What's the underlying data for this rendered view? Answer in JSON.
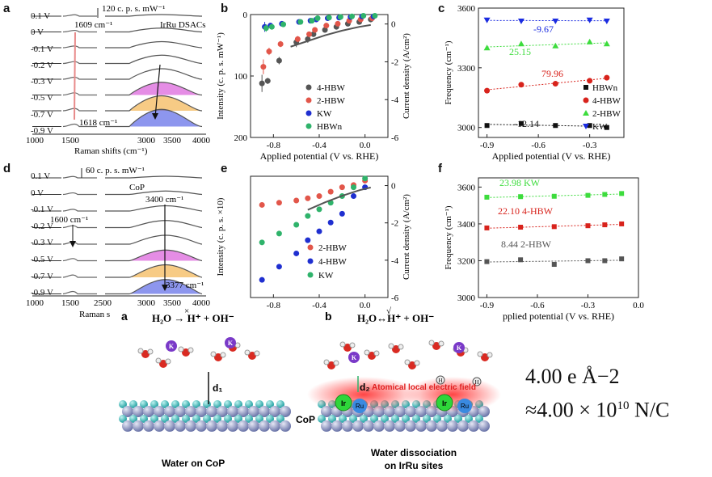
{
  "colors": {
    "black": "#555555",
    "red": "#e2564a",
    "blue": "#1f2fd0",
    "green": "#2fb36b",
    "lightgreen": "#3ddc3d",
    "navy": "#1a2be0",
    "bg": "#ffffff"
  },
  "panel_labels": {
    "a": "a",
    "b": "b",
    "c": "c",
    "d": "d",
    "e": "e",
    "f": "f",
    "a2": "a",
    "b2": "b"
  },
  "panel_a": {
    "scale": "120 c. p. s. mW⁻¹",
    "title": "IrRu DSACs",
    "peak_left": "1609 cm⁻¹",
    "peak_bottom": "1618 cm⁻¹",
    "potentials": [
      "0.1 V",
      "0 V",
      "-0.1 V",
      "-0.2 V",
      "-0.3 V",
      "-0.5 V",
      "-0.7 V",
      "-0.9 V"
    ],
    "xticks": [
      "1000",
      "1500",
      "3000",
      "3500",
      "4000"
    ],
    "xlabel": "Raman shifts (cm⁻¹)"
  },
  "panel_d": {
    "scale": "60 c. p. s. mW⁻¹",
    "title": "CoP",
    "peak_top": "3400 cm⁻¹",
    "peak_left": "1600 cm⁻¹",
    "peak_bottom": "3377 cm⁻¹",
    "potentials": [
      "0.1 V",
      "0 V",
      "-0.1 V",
      "-0.2 V",
      "-0.3 V",
      "-0.5 V",
      "-0.7 V",
      "-0.9 V"
    ],
    "xticks": [
      "1000",
      "1500",
      "2500",
      "3000",
      "3500",
      "4000"
    ],
    "xlabel": "Raman s"
  },
  "chart_data": [
    {
      "id": "b",
      "type": "scatter",
      "xlabel": "Applied potential (V vs. RHE)",
      "ylabel": "Intensity (c. p. s. mW⁻¹)",
      "y2label": "Current density (A/cm²)",
      "xlim": [
        -1.0,
        0.2
      ],
      "xticks": [
        "-0.8",
        "-0.4",
        "0.0"
      ],
      "ylim": [
        0,
        200
      ],
      "yticks": [
        "0",
        "100",
        "200"
      ],
      "y2lim": [
        -6,
        0.5
      ],
      "y2ticks": [
        "0",
        "-2",
        "-4",
        "-6"
      ],
      "x": [
        -0.9,
        -0.85,
        -0.75,
        -0.6,
        -0.5,
        -0.45,
        -0.35,
        -0.25,
        -0.15,
        -0.05,
        0.05
      ],
      "series": [
        {
          "name": "4-HBW",
          "color": "#555555",
          "values": [
            112,
            108,
            75,
            45,
            40,
            32,
            25,
            20,
            15,
            12,
            8
          ],
          "err": [
            14,
            5,
            6,
            8,
            6,
            4,
            3,
            3,
            3,
            2,
            2
          ]
        },
        {
          "name": "2-HBW",
          "color": "#e2564a",
          "values": [
            85,
            60,
            48,
            40,
            32,
            25,
            18,
            15,
            10,
            8,
            6
          ],
          "err": [
            12,
            6,
            5,
            5,
            4,
            4,
            3,
            3,
            2,
            2,
            2
          ]
        },
        {
          "name": "KW",
          "color": "#1f2fd0",
          "values": [
            20,
            18,
            15,
            12,
            10,
            8,
            6,
            5,
            4,
            3,
            3
          ],
          "err": [
            8,
            4,
            3,
            3,
            3,
            2,
            2,
            2,
            2,
            2,
            2
          ]
        },
        {
          "name": "HBWn",
          "color": "#2fb36b",
          "values": [
            22,
            20,
            16,
            12,
            10,
            6,
            5,
            4,
            3,
            2,
            2
          ],
          "err": [
            6,
            3,
            3,
            3,
            2,
            2,
            2,
            2,
            2,
            2,
            2
          ]
        }
      ],
      "curve": {
        "x": [
          -0.65,
          -0.5,
          -0.35,
          -0.2,
          -0.05,
          0.05
        ],
        "y2": [
          -1.2,
          -0.9,
          -0.6,
          -0.35,
          -0.15,
          -0.05
        ]
      }
    },
    {
      "id": "c",
      "type": "scatter",
      "xlabel": "Applied potential (V vs. RHE)",
      "ylabel": "Frequency (cm⁻¹)",
      "xlim": [
        -0.95,
        -0.1
      ],
      "xticks": [
        "-0.9",
        "-0.6",
        "-0.3"
      ],
      "ylim": [
        2950,
        3600
      ],
      "yticks": [
        "3000",
        "3300",
        "3600"
      ],
      "x": [
        -0.9,
        -0.7,
        -0.5,
        -0.3,
        -0.2
      ],
      "series": [
        {
          "name": "KW",
          "color": "#1a2be0",
          "marker": "tri-down",
          "values": [
            3540,
            3535,
            3535,
            3540,
            3535
          ],
          "slope": "-9.67"
        },
        {
          "name": "2-HBW",
          "color": "#3ddc3d",
          "marker": "tri-up",
          "values": [
            3400,
            3420,
            3410,
            3430,
            3420
          ],
          "slope": "25.15"
        },
        {
          "name": "4-HBW",
          "color": "#d8231c",
          "marker": "circle",
          "values": [
            3185,
            3215,
            3220,
            3235,
            3250
          ],
          "slope": "79.96"
        },
        {
          "name": "HBWn",
          "color": "#111111",
          "marker": "square",
          "values": [
            3010,
            3020,
            3010,
            3010,
            3000
          ],
          "slope": "-12.14"
        }
      ]
    },
    {
      "id": "e",
      "type": "scatter",
      "xlabel": "",
      "ylabel": "Intensity (c. p. s. ×10)",
      "y2label": "Current density (A/cm²)",
      "xlim": [
        -1.0,
        0.2
      ],
      "xticks": [
        "-0.8",
        "-0.4",
        "0.0"
      ],
      "ylim": [
        0,
        5.5
      ],
      "y2lim": [
        -6,
        0.5
      ],
      "y2ticks": [
        "0",
        "-2",
        "-4",
        "-6"
      ],
      "x": [
        -0.9,
        -0.75,
        -0.6,
        -0.5,
        -0.4,
        -0.3,
        -0.2,
        -0.1,
        0.0
      ],
      "series": [
        {
          "name": "2-HBW",
          "color": "#e2564a",
          "values": [
            4.2,
            4.3,
            4.4,
            4.5,
            4.6,
            4.8,
            5.0,
            5.1,
            5.3
          ]
        },
        {
          "name": "4-HBW",
          "color": "#1f2fd0",
          "values": [
            0.8,
            1.4,
            2.0,
            2.6,
            3.0,
            3.4,
            3.8,
            4.6,
            5.0
          ]
        },
        {
          "name": "KW",
          "color": "#2fb36b",
          "values": [
            2.5,
            2.9,
            3.3,
            3.7,
            4.0,
            4.3,
            4.6,
            5.0,
            5.4
          ]
        }
      ],
      "curve": {
        "x": [
          -0.5,
          -0.35,
          -0.2,
          -0.05,
          0.05
        ],
        "y2": [
          -1.3,
          -0.9,
          -0.55,
          -0.25,
          -0.1
        ]
      }
    },
    {
      "id": "f",
      "type": "scatter",
      "xlabel": "pplied potential (V vs. RHE)",
      "ylabel": "Frequency (cm⁻¹)",
      "xlim": [
        -0.95,
        0.0
      ],
      "xticks": [
        "-0.9",
        "-0.6",
        "-0.3",
        "0.0"
      ],
      "ylim": [
        3000,
        3650
      ],
      "yticks": [
        "3000",
        "3200",
        "3400",
        "3600"
      ],
      "x": [
        -0.9,
        -0.7,
        -0.5,
        -0.3,
        -0.2,
        -0.1
      ],
      "series": [
        {
          "name": "KW",
          "color": "#3ddc3d",
          "marker": "square",
          "values": [
            3545,
            3548,
            3550,
            3555,
            3560,
            3565
          ],
          "slope": "23.98"
        },
        {
          "name": "4-HBW",
          "color": "#d8231c",
          "marker": "square",
          "values": [
            3378,
            3382,
            3385,
            3390,
            3395,
            3400
          ],
          "slope": "22.10"
        },
        {
          "name": "2-HBW",
          "color": "#555555",
          "marker": "square",
          "values": [
            3195,
            3205,
            3180,
            3200,
            3200,
            3210
          ],
          "slope": "8.44"
        }
      ]
    }
  ],
  "schematic": {
    "left_eq": "H₂O → H⁺ + OH⁻",
    "left_eq_mark": "×",
    "right_eq": "H₂O↔H⁺ + OH⁻",
    "right_eq_mark": "√",
    "d1": "d₁",
    "d2": "d₂",
    "field": "Atomical local electric field",
    "cop": "CoP",
    "ir": "Ir",
    "ru": "Ru",
    "k": "K",
    "h": "H",
    "left_caption": "Water on CoP",
    "right_caption": "Water dissociation on IrRu sites"
  },
  "annotation": {
    "line1": "4.00 e Å−2",
    "line2": "≈4.00 × 10",
    "line2_exp": "10",
    "line2_unit": " N/C"
  }
}
